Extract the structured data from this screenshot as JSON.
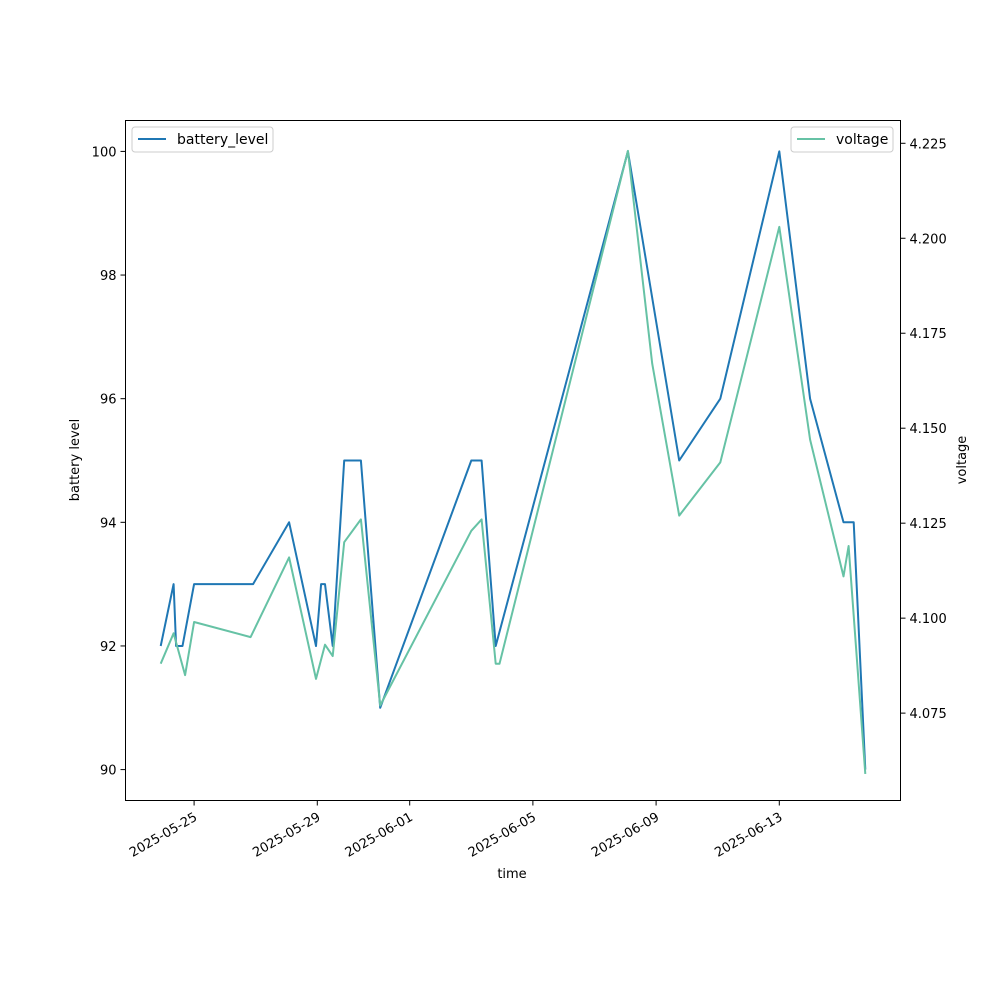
{
  "chart_data": {
    "type": "line",
    "xlabel": "time",
    "ylabel": "battery level",
    "y2label": "voltage",
    "x_ticks": [
      "2025-05-25",
      "2025-05-29",
      "2025-06-01",
      "2025-06-05",
      "2025-06-09",
      "2025-06-13"
    ],
    "ylim": [
      89.5,
      100.5
    ],
    "y_ticks": [
      90,
      92,
      94,
      96,
      98,
      100
    ],
    "y2lim": [
      4.052,
      4.231
    ],
    "y2_ticks": [
      "4.075",
      "4.100",
      "4.125",
      "4.150",
      "4.175",
      "4.200",
      "4.225"
    ],
    "grid": false,
    "series": [
      {
        "name": "battery_level",
        "axis": "left",
        "color": "#1f77b4",
        "legend_loc": "upper left",
        "points": [
          [
            "2025-05-23T22:00",
            92
          ],
          [
            "2025-05-24T08:00",
            93
          ],
          [
            "2025-05-24T10:00",
            92
          ],
          [
            "2025-05-24T15:00",
            92
          ],
          [
            "2025-05-25T00:00",
            93
          ],
          [
            "2025-05-26T22:00",
            93
          ],
          [
            "2025-05-28T02:00",
            94
          ],
          [
            "2025-05-28T23:00",
            92
          ],
          [
            "2025-05-29T03:00",
            93
          ],
          [
            "2025-05-29T06:00",
            93
          ],
          [
            "2025-05-29T12:00",
            92
          ],
          [
            "2025-05-29T21:00",
            95
          ],
          [
            "2025-05-30T10:00",
            95
          ],
          [
            "2025-05-31T01:00",
            91
          ],
          [
            "2025-06-03T00:00",
            95
          ],
          [
            "2025-06-03T08:00",
            95
          ],
          [
            "2025-06-03T19:00",
            92
          ],
          [
            "2025-06-08T02:00",
            100
          ],
          [
            "2025-06-09T18:00",
            95
          ],
          [
            "2025-06-11T02:00",
            96
          ],
          [
            "2025-06-13T00:00",
            100
          ],
          [
            "2025-06-14T00:00",
            96
          ],
          [
            "2025-06-15T02:00",
            94
          ],
          [
            "2025-06-15T10:00",
            94
          ],
          [
            "2025-06-15T19:00",
            90
          ]
        ]
      },
      {
        "name": "voltage",
        "axis": "right",
        "color": "#66c2a5",
        "legend_loc": "upper right",
        "points": [
          [
            "2025-05-23T22:00",
            4.088
          ],
          [
            "2025-05-24T08:00",
            4.096
          ],
          [
            "2025-05-24T17:00",
            4.085
          ],
          [
            "2025-05-25T00:00",
            4.099
          ],
          [
            "2025-05-26T20:00",
            4.095
          ],
          [
            "2025-05-28T02:00",
            4.116
          ],
          [
            "2025-05-28T23:00",
            4.084
          ],
          [
            "2025-05-29T06:00",
            4.093
          ],
          [
            "2025-05-29T12:00",
            4.09
          ],
          [
            "2025-05-29T21:00",
            4.12
          ],
          [
            "2025-05-30T10:00",
            4.126
          ],
          [
            "2025-05-31T01:00",
            4.077
          ],
          [
            "2025-06-03T00:00",
            4.123
          ],
          [
            "2025-06-03T08:00",
            4.126
          ],
          [
            "2025-06-03T19:00",
            4.088
          ],
          [
            "2025-06-03T22:00",
            4.088
          ],
          [
            "2025-06-08T02:00",
            4.223
          ],
          [
            "2025-06-08T21:00",
            4.167
          ],
          [
            "2025-06-09T18:00",
            4.127
          ],
          [
            "2025-06-11T02:00",
            4.141
          ],
          [
            "2025-06-13T00:00",
            4.203
          ],
          [
            "2025-06-14T00:00",
            4.147
          ],
          [
            "2025-06-15T02:00",
            4.111
          ],
          [
            "2025-06-15T06:00",
            4.119
          ],
          [
            "2025-06-15T19:00",
            4.059
          ]
        ]
      }
    ]
  }
}
